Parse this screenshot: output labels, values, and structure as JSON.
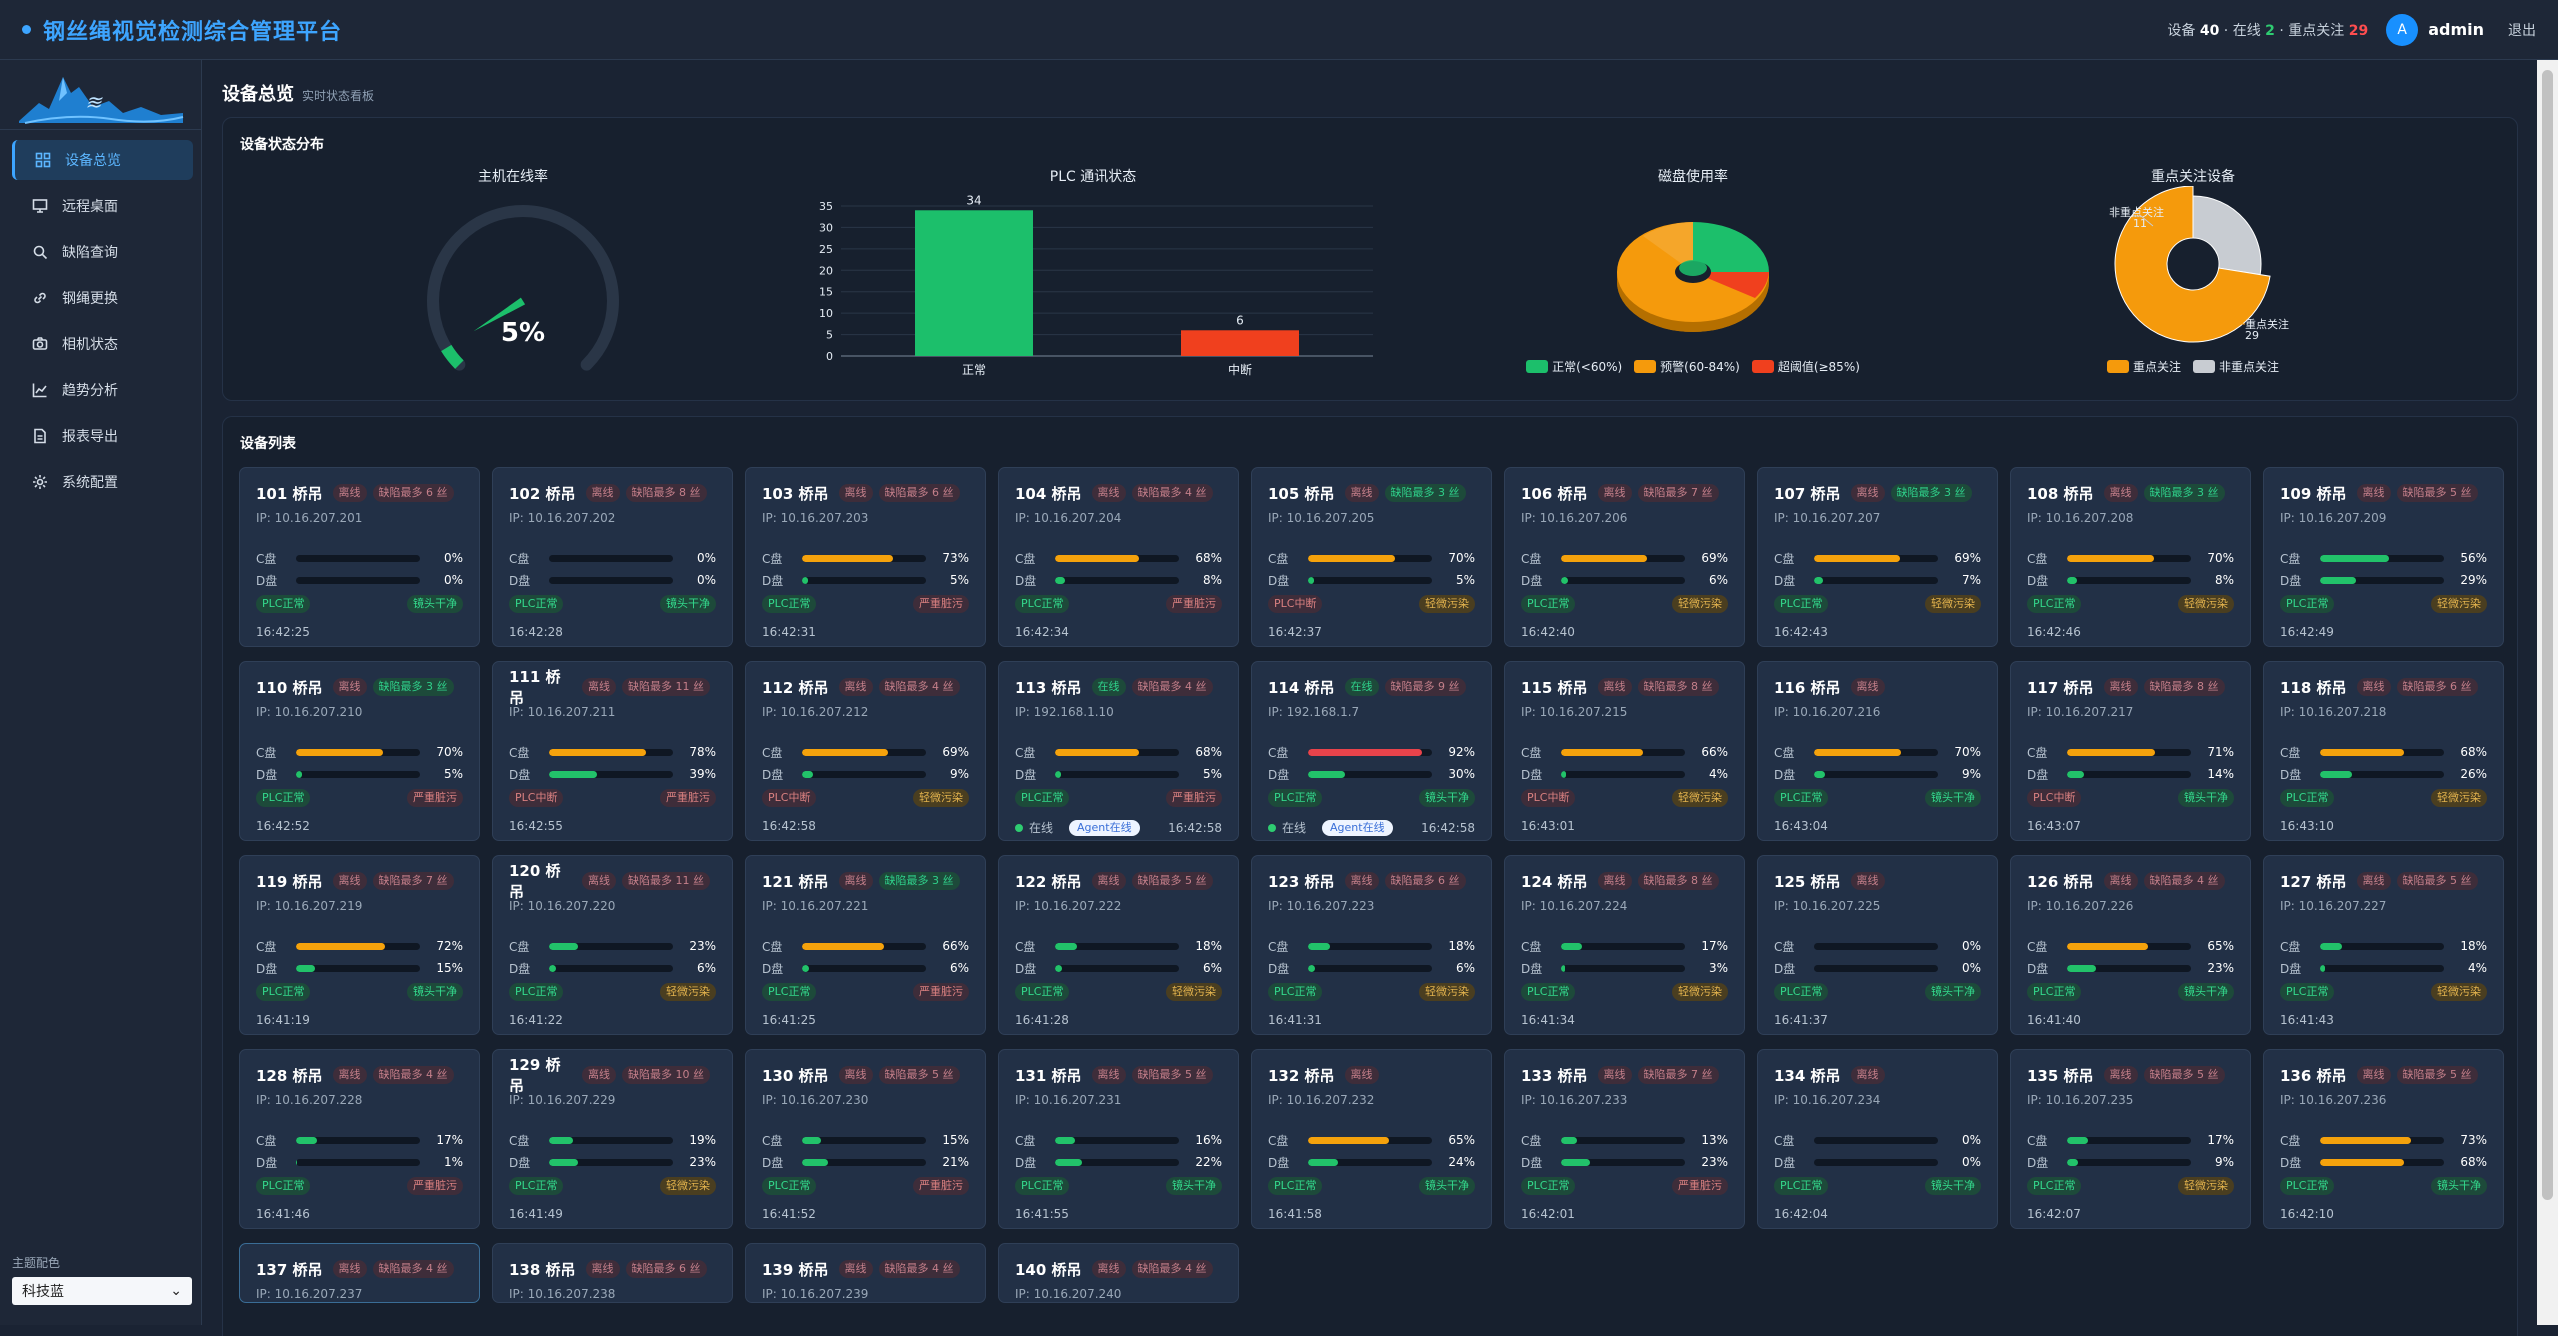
{
  "app": {
    "title": "钢丝绳视觉检测综合管理平台"
  },
  "header": {
    "stats_prefix": "设备",
    "device_count": "40",
    "online_prefix": "· 在线",
    "online_count": "2",
    "focus_prefix": "· 重点关注",
    "focus_count": "29",
    "avatar_letter": "A",
    "user": "admin",
    "logout": "退出"
  },
  "sidebar": {
    "items": [
      {
        "label": "设备总览",
        "icon": "grid-icon"
      },
      {
        "label": "远程桌面",
        "icon": "monitor-icon"
      },
      {
        "label": "缺陷查询",
        "icon": "search-icon"
      },
      {
        "label": "钢绳更换",
        "icon": "link-icon"
      },
      {
        "label": "相机状态",
        "icon": "camera-icon"
      },
      {
        "label": "趋势分析",
        "icon": "trend-icon"
      },
      {
        "label": "报表导出",
        "icon": "document-icon"
      },
      {
        "label": "系统配置",
        "icon": "gear-icon"
      }
    ],
    "theme_label": "主题配色",
    "theme_value": "科技蓝"
  },
  "page": {
    "title": "设备总览",
    "subtitle": "实时状态看板"
  },
  "status_panel": {
    "title": "设备状态分布"
  },
  "charts": {
    "online": {
      "title": "主机在线率",
      "value_text": "5%",
      "value": 5
    },
    "plc": {
      "title": "PLC 通讯状态",
      "categories": [
        "正常",
        "中断"
      ],
      "values": [
        34,
        6
      ],
      "colors": [
        "#1cbf6b",
        "#f0401e"
      ],
      "yticks": [
        "0",
        "5",
        "10",
        "15",
        "20",
        "25",
        "30",
        "35"
      ],
      "ylim": [
        0,
        35
      ]
    },
    "disk": {
      "title": "磁盘使用率",
      "legend": [
        {
          "label": "正常(<60%)",
          "color": "#1cbf6b"
        },
        {
          "label": "预警(60-84%)",
          "color": "#f59a0c"
        },
        {
          "label": "超阈值(≥85%)",
          "color": "#f0401e"
        }
      ]
    },
    "focus": {
      "title": "重点关注设备",
      "slices": [
        {
          "label": "重点关注",
          "value": 29,
          "color": "#f59a0c",
          "annot": "重点关注",
          "annot_value": "29"
        },
        {
          "label": "非重点关注",
          "value": 11,
          "color": "#c8ccd2",
          "annot": "非重点关注",
          "annot_value": "11"
        }
      ]
    }
  },
  "device_panel": {
    "title": "设备列表"
  },
  "devices": [
    {
      "name": "101 桥吊",
      "status": "离线",
      "defect": "缺陷最多 6 丝",
      "defect_ok": false,
      "ip": "IP: 10.16.207.201",
      "c": "0%",
      "cv": 0,
      "d": "0%",
      "dv": 0,
      "plc": "PLC正常",
      "plc_ok": true,
      "lens": "镜头干净",
      "lens_lvl": "clean",
      "time": "16:42:25"
    },
    {
      "name": "102 桥吊",
      "status": "离线",
      "defect": "缺陷最多 8 丝",
      "defect_ok": false,
      "ip": "IP: 10.16.207.202",
      "c": "0%",
      "cv": 0,
      "d": "0%",
      "dv": 0,
      "plc": "PLC正常",
      "plc_ok": true,
      "lens": "镜头干净",
      "lens_lvl": "clean",
      "time": "16:42:28"
    },
    {
      "name": "103 桥吊",
      "status": "离线",
      "defect": "缺陷最多 6 丝",
      "defect_ok": false,
      "ip": "IP: 10.16.207.203",
      "c": "73%",
      "cv": 73,
      "d": "5%",
      "dv": 5,
      "plc": "PLC正常",
      "plc_ok": true,
      "lens": "严重脏污",
      "lens_lvl": "heavy",
      "time": "16:42:31"
    },
    {
      "name": "104 桥吊",
      "status": "离线",
      "defect": "缺陷最多 4 丝",
      "defect_ok": false,
      "ip": "IP: 10.16.207.204",
      "c": "68%",
      "cv": 68,
      "d": "8%",
      "dv": 8,
      "plc": "PLC正常",
      "plc_ok": true,
      "lens": "严重脏污",
      "lens_lvl": "heavy",
      "time": "16:42:34"
    },
    {
      "name": "105 桥吊",
      "status": "离线",
      "defect": "缺陷最多 3 丝",
      "defect_ok": true,
      "ip": "IP: 10.16.207.205",
      "c": "70%",
      "cv": 70,
      "d": "5%",
      "dv": 5,
      "plc": "PLC中断",
      "plc_ok": false,
      "lens": "轻微污染",
      "lens_lvl": "light",
      "time": "16:42:37"
    },
    {
      "name": "106 桥吊",
      "status": "离线",
      "defect": "缺陷最多 7 丝",
      "defect_ok": false,
      "ip": "IP: 10.16.207.206",
      "c": "69%",
      "cv": 69,
      "d": "6%",
      "dv": 6,
      "plc": "PLC正常",
      "plc_ok": true,
      "lens": "轻微污染",
      "lens_lvl": "light",
      "time": "16:42:40"
    },
    {
      "name": "107 桥吊",
      "status": "离线",
      "defect": "缺陷最多 3 丝",
      "defect_ok": true,
      "ip": "IP: 10.16.207.207",
      "c": "69%",
      "cv": 69,
      "d": "7%",
      "dv": 7,
      "plc": "PLC正常",
      "plc_ok": true,
      "lens": "轻微污染",
      "lens_lvl": "light",
      "time": "16:42:43"
    },
    {
      "name": "108 桥吊",
      "status": "离线",
      "defect": "缺陷最多 3 丝",
      "defect_ok": true,
      "ip": "IP: 10.16.207.208",
      "c": "70%",
      "cv": 70,
      "d": "8%",
      "dv": 8,
      "plc": "PLC正常",
      "plc_ok": true,
      "lens": "轻微污染",
      "lens_lvl": "light",
      "time": "16:42:46"
    },
    {
      "name": "109 桥吊",
      "status": "离线",
      "defect": "缺陷最多 5 丝",
      "defect_ok": false,
      "ip": "IP: 10.16.207.209",
      "c": "56%",
      "cv": 56,
      "d": "29%",
      "dv": 29,
      "plc": "PLC正常",
      "plc_ok": true,
      "lens": "轻微污染",
      "lens_lvl": "light",
      "time": "16:42:49"
    },
    {
      "name": "110 桥吊",
      "status": "离线",
      "defect": "缺陷最多 3 丝",
      "defect_ok": true,
      "ip": "IP: 10.16.207.210",
      "c": "70%",
      "cv": 70,
      "d": "5%",
      "dv": 5,
      "plc": "PLC正常",
      "plc_ok": true,
      "lens": "严重脏污",
      "lens_lvl": "heavy",
      "time": "16:42:52"
    },
    {
      "name": "111 桥吊",
      "status": "离线",
      "defect": "缺陷最多 11 丝",
      "defect_ok": false,
      "ip": "IP: 10.16.207.211",
      "c": "78%",
      "cv": 78,
      "d": "39%",
      "dv": 39,
      "plc": "PLC中断",
      "plc_ok": false,
      "lens": "严重脏污",
      "lens_lvl": "heavy",
      "time": "16:42:55"
    },
    {
      "name": "112 桥吊",
      "status": "离线",
      "defect": "缺陷最多 4 丝",
      "defect_ok": false,
      "ip": "IP: 10.16.207.212",
      "c": "69%",
      "cv": 69,
      "d": "9%",
      "dv": 9,
      "plc": "PLC中断",
      "plc_ok": false,
      "lens": "轻微污染",
      "lens_lvl": "light",
      "time": "16:42:58"
    },
    {
      "name": "113 桥吊",
      "status": "在线",
      "online": true,
      "defect": "缺陷最多 4 丝",
      "defect_ok": false,
      "ip": "IP: 192.168.1.10",
      "c": "68%",
      "cv": 68,
      "d": "5%",
      "dv": 5,
      "plc": "PLC正常",
      "plc_ok": true,
      "lens": "严重脏污",
      "lens_lvl": "heavy",
      "agent_state": "在线",
      "agent": "Agent在线",
      "time": "16:42:58"
    },
    {
      "name": "114 桥吊",
      "status": "在线",
      "online": true,
      "defect": "缺陷最多 9 丝",
      "defect_ok": false,
      "ip": "IP: 192.168.1.7",
      "c": "92%",
      "cv": 92,
      "d": "30%",
      "dv": 30,
      "plc": "PLC正常",
      "plc_ok": true,
      "lens": "镜头干净",
      "lens_lvl": "clean",
      "agent_state": "在线",
      "agent": "Agent在线",
      "time": "16:42:58"
    },
    {
      "name": "115 桥吊",
      "status": "离线",
      "defect": "缺陷最多 8 丝",
      "defect_ok": false,
      "ip": "IP: 10.16.207.215",
      "c": "66%",
      "cv": 66,
      "d": "4%",
      "dv": 4,
      "plc": "PLC中断",
      "plc_ok": false,
      "lens": "轻微污染",
      "lens_lvl": "light",
      "time": "16:43:01"
    },
    {
      "name": "116 桥吊",
      "status": "离线",
      "defect": "",
      "ip": "IP: 10.16.207.216",
      "c": "70%",
      "cv": 70,
      "d": "9%",
      "dv": 9,
      "plc": "PLC正常",
      "plc_ok": true,
      "lens": "镜头干净",
      "lens_lvl": "clean",
      "time": "16:43:04"
    },
    {
      "name": "117 桥吊",
      "status": "离线",
      "defect": "缺陷最多 8 丝",
      "defect_ok": false,
      "ip": "IP: 10.16.207.217",
      "c": "71%",
      "cv": 71,
      "d": "14%",
      "dv": 14,
      "plc": "PLC中断",
      "plc_ok": false,
      "lens": "镜头干净",
      "lens_lvl": "clean",
      "time": "16:43:07"
    },
    {
      "name": "118 桥吊",
      "status": "离线",
      "defect": "缺陷最多 6 丝",
      "defect_ok": false,
      "ip": "IP: 10.16.207.218",
      "c": "68%",
      "cv": 68,
      "d": "26%",
      "dv": 26,
      "plc": "PLC正常",
      "plc_ok": true,
      "lens": "轻微污染",
      "lens_lvl": "light",
      "time": "16:43:10"
    },
    {
      "name": "119 桥吊",
      "status": "离线",
      "defect": "缺陷最多 7 丝",
      "defect_ok": false,
      "ip": "IP: 10.16.207.219",
      "c": "72%",
      "cv": 72,
      "d": "15%",
      "dv": 15,
      "plc": "PLC正常",
      "plc_ok": true,
      "lens": "镜头干净",
      "lens_lvl": "clean",
      "time": "16:41:19"
    },
    {
      "name": "120 桥吊",
      "status": "离线",
      "defect": "缺陷最多 11 丝",
      "defect_ok": false,
      "ip": "IP: 10.16.207.220",
      "c": "23%",
      "cv": 23,
      "d": "6%",
      "dv": 6,
      "plc": "PLC正常",
      "plc_ok": true,
      "lens": "轻微污染",
      "lens_lvl": "light",
      "time": "16:41:22"
    },
    {
      "name": "121 桥吊",
      "status": "离线",
      "defect": "缺陷最多 3 丝",
      "defect_ok": true,
      "ip": "IP: 10.16.207.221",
      "c": "66%",
      "cv": 66,
      "d": "6%",
      "dv": 6,
      "plc": "PLC正常",
      "plc_ok": true,
      "lens": "严重脏污",
      "lens_lvl": "heavy",
      "time": "16:41:25"
    },
    {
      "name": "122 桥吊",
      "status": "离线",
      "defect": "缺陷最多 5 丝",
      "defect_ok": false,
      "ip": "IP: 10.16.207.222",
      "c": "18%",
      "cv": 18,
      "d": "6%",
      "dv": 6,
      "plc": "PLC正常",
      "plc_ok": true,
      "lens": "轻微污染",
      "lens_lvl": "light",
      "time": "16:41:28"
    },
    {
      "name": "123 桥吊",
      "status": "离线",
      "defect": "缺陷最多 6 丝",
      "defect_ok": false,
      "ip": "IP: 10.16.207.223",
      "c": "18%",
      "cv": 18,
      "d": "6%",
      "dv": 6,
      "plc": "PLC正常",
      "plc_ok": true,
      "lens": "轻微污染",
      "lens_lvl": "light",
      "time": "16:41:31"
    },
    {
      "name": "124 桥吊",
      "status": "离线",
      "defect": "缺陷最多 8 丝",
      "defect_ok": false,
      "ip": "IP: 10.16.207.224",
      "c": "17%",
      "cv": 17,
      "d": "3%",
      "dv": 3,
      "plc": "PLC正常",
      "plc_ok": true,
      "lens": "轻微污染",
      "lens_lvl": "light",
      "time": "16:41:34"
    },
    {
      "name": "125 桥吊",
      "status": "离线",
      "defect": "",
      "ip": "IP: 10.16.207.225",
      "c": "0%",
      "cv": 0,
      "d": "0%",
      "dv": 0,
      "plc": "PLC正常",
      "plc_ok": true,
      "lens": "镜头干净",
      "lens_lvl": "clean",
      "time": "16:41:37"
    },
    {
      "name": "126 桥吊",
      "status": "离线",
      "defect": "缺陷最多 4 丝",
      "defect_ok": false,
      "ip": "IP: 10.16.207.226",
      "c": "65%",
      "cv": 65,
      "d": "23%",
      "dv": 23,
      "plc": "PLC正常",
      "plc_ok": true,
      "lens": "镜头干净",
      "lens_lvl": "clean",
      "time": "16:41:40"
    },
    {
      "name": "127 桥吊",
      "status": "离线",
      "defect": "缺陷最多 5 丝",
      "defect_ok": false,
      "ip": "IP: 10.16.207.227",
      "c": "18%",
      "cv": 18,
      "d": "4%",
      "dv": 4,
      "plc": "PLC正常",
      "plc_ok": true,
      "lens": "轻微污染",
      "lens_lvl": "light",
      "time": "16:41:43"
    },
    {
      "name": "128 桥吊",
      "status": "离线",
      "defect": "缺陷最多 4 丝",
      "defect_ok": false,
      "ip": "IP: 10.16.207.228",
      "c": "17%",
      "cv": 17,
      "d": "1%",
      "dv": 1,
      "plc": "PLC正常",
      "plc_ok": true,
      "lens": "严重脏污",
      "lens_lvl": "heavy",
      "time": "16:41:46"
    },
    {
      "name": "129 桥吊",
      "status": "离线",
      "defect": "缺陷最多 10 丝",
      "defect_ok": false,
      "ip": "IP: 10.16.207.229",
      "c": "19%",
      "cv": 19,
      "d": "23%",
      "dv": 23,
      "plc": "PLC正常",
      "plc_ok": true,
      "lens": "轻微污染",
      "lens_lvl": "light",
      "time": "16:41:49"
    },
    {
      "name": "130 桥吊",
      "status": "离线",
      "defect": "缺陷最多 5 丝",
      "defect_ok": false,
      "ip": "IP: 10.16.207.230",
      "c": "15%",
      "cv": 15,
      "d": "21%",
      "dv": 21,
      "plc": "PLC正常",
      "plc_ok": true,
      "lens": "严重脏污",
      "lens_lvl": "heavy",
      "time": "16:41:52"
    },
    {
      "name": "131 桥吊",
      "status": "离线",
      "defect": "缺陷最多 5 丝",
      "defect_ok": false,
      "ip": "IP: 10.16.207.231",
      "c": "16%",
      "cv": 16,
      "d": "22%",
      "dv": 22,
      "plc": "PLC正常",
      "plc_ok": true,
      "lens": "镜头干净",
      "lens_lvl": "clean",
      "time": "16:41:55"
    },
    {
      "name": "132 桥吊",
      "status": "离线",
      "defect": "",
      "ip": "IP: 10.16.207.232",
      "c": "65%",
      "cv": 65,
      "d": "24%",
      "dv": 24,
      "plc": "PLC正常",
      "plc_ok": true,
      "lens": "镜头干净",
      "lens_lvl": "clean",
      "time": "16:41:58"
    },
    {
      "name": "133 桥吊",
      "status": "离线",
      "defect": "缺陷最多 7 丝",
      "defect_ok": false,
      "ip": "IP: 10.16.207.233",
      "c": "13%",
      "cv": 13,
      "d": "23%",
      "dv": 23,
      "plc": "PLC正常",
      "plc_ok": true,
      "lens": "严重脏污",
      "lens_lvl": "heavy",
      "time": "16:42:01"
    },
    {
      "name": "134 桥吊",
      "status": "离线",
      "defect": "",
      "ip": "IP: 10.16.207.234",
      "c": "0%",
      "cv": 0,
      "d": "0%",
      "dv": 0,
      "plc": "PLC正常",
      "plc_ok": true,
      "lens": "镜头干净",
      "lens_lvl": "clean",
      "time": "16:42:04"
    },
    {
      "name": "135 桥吊",
      "status": "离线",
      "defect": "缺陷最多 5 丝",
      "defect_ok": false,
      "ip": "IP: 10.16.207.235",
      "c": "17%",
      "cv": 17,
      "d": "9%",
      "dv": 9,
      "plc": "PLC正常",
      "plc_ok": true,
      "lens": "轻微污染",
      "lens_lvl": "light",
      "time": "16:42:07"
    },
    {
      "name": "136 桥吊",
      "status": "离线",
      "defect": "缺陷最多 5 丝",
      "defect_ok": false,
      "ip": "IP: 10.16.207.236",
      "c": "73%",
      "cv": 73,
      "d": "68%",
      "dv": 68,
      "plc": "PLC正常",
      "plc_ok": true,
      "lens": "镜头干净",
      "lens_lvl": "clean",
      "time": "16:42:10"
    },
    {
      "name": "137 桥吊",
      "status": "离线",
      "defect": "缺陷最多 4 丝",
      "defect_ok": false,
      "ip": "IP: 10.16.207.237",
      "partial": true,
      "selected": true
    },
    {
      "name": "138 桥吊",
      "status": "离线",
      "defect": "缺陷最多 6 丝",
      "defect_ok": false,
      "ip": "IP: 10.16.207.238",
      "partial": true
    },
    {
      "name": "139 桥吊",
      "status": "离线",
      "defect": "缺陷最多 4 丝",
      "defect_ok": false,
      "ip": "IP: 10.16.207.239",
      "partial": true
    },
    {
      "name": "140 桥吊",
      "status": "离线",
      "defect": "缺陷最多 4 丝",
      "defect_ok": false,
      "ip": "IP: 10.16.207.240",
      "partial": true
    }
  ],
  "disk_labels": {
    "c": "C盘",
    "d": "D盘"
  }
}
